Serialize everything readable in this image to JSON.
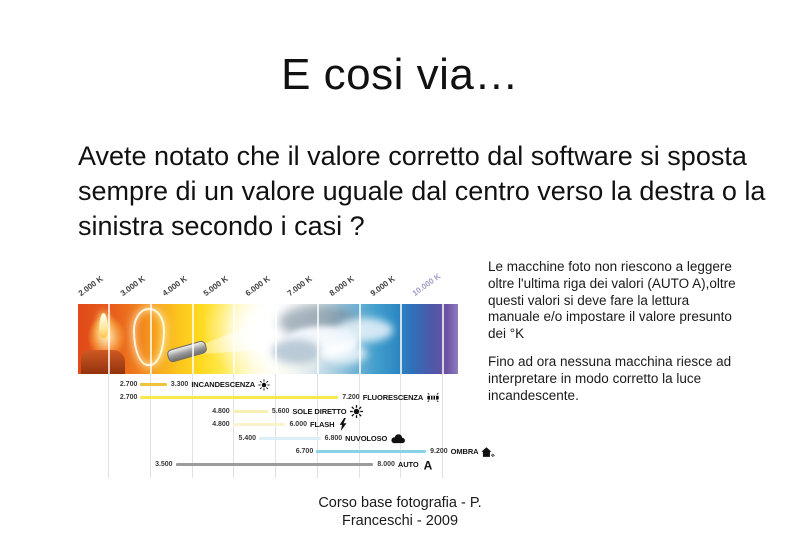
{
  "title": "E cosi via…",
  "body_text": "Avete notato che il valore corretto dal software si sposta sempre di un valore uguale dal centro verso la destra o la sinistra secondo i casi ?",
  "side_note": {
    "paragraph1": "Le macchine foto non riescono a leggere oltre l'ultima riga dei valori (AUTO A),oltre questi valori si deve fare la lettura manuale e/o impostare il valore presunto dei °K",
    "paragraph2": "Fino ad ora nessuna macchina riesce ad interpretare in modo corretto la luce incandescente."
  },
  "footer": {
    "line1": "Corso base fotografia - P.",
    "line2": "Franceschi - 2009"
  },
  "chart_data": {
    "type": "bar",
    "subtype": "horizontal-range",
    "unit": "K",
    "axis": {
      "min": 1280,
      "max": 10380,
      "ticks": [
        {
          "value": 2000,
          "label": "2.000 K"
        },
        {
          "value": 3000,
          "label": "3.000 K"
        },
        {
          "value": 4000,
          "label": "4.000 K"
        },
        {
          "value": 5000,
          "label": "5.000 K"
        },
        {
          "value": 6000,
          "label": "6.000 K"
        },
        {
          "value": 7000,
          "label": "7.000 K"
        },
        {
          "value": 8000,
          "label": "8.000 K"
        },
        {
          "value": 9000,
          "label": "9.000 K"
        },
        {
          "value": 10000,
          "label": "10.000 K"
        }
      ]
    },
    "band_colors": [
      {
        "value": 1280,
        "color": "#e04a18"
      },
      {
        "value": 2100,
        "color": "#e85c1d"
      },
      {
        "value": 2700,
        "color": "#f07c1b"
      },
      {
        "value": 3200,
        "color": "#f7a81e"
      },
      {
        "value": 3700,
        "color": "#fcc51e"
      },
      {
        "value": 4200,
        "color": "#ffd91f"
      },
      {
        "value": 4700,
        "color": "#ffe749"
      },
      {
        "value": 5100,
        "color": "#fff49b"
      },
      {
        "value": 5500,
        "color": "#fffbd8"
      },
      {
        "value": 5900,
        "color": "#ffffff"
      },
      {
        "value": 6400,
        "color": "#f2f6f8"
      },
      {
        "value": 6900,
        "color": "#d9e6ee"
      },
      {
        "value": 7400,
        "color": "#accfe2"
      },
      {
        "value": 7900,
        "color": "#74b4d6"
      },
      {
        "value": 8400,
        "color": "#43a0cc"
      },
      {
        "value": 8900,
        "color": "#2e8ac4"
      },
      {
        "value": 9300,
        "color": "#2f6fb8"
      },
      {
        "value": 9700,
        "color": "#4b5aab"
      },
      {
        "value": 10100,
        "color": "#6b51a1"
      },
      {
        "value": 10380,
        "color": "#8f7cc0"
      }
    ],
    "sources": [
      {
        "name": "INCANDESCENZA",
        "start": 2700,
        "end": 3300,
        "start_label": "2.700",
        "end_label": "3.300",
        "icon": "bulb-icon",
        "line_color": "#eec23a"
      },
      {
        "name": "FLUORESCENZA",
        "start": 2700,
        "end": 7200,
        "start_label": "2.700",
        "end_label": "7.200",
        "icon": "fluorescent-tube-icon",
        "line_color": "#f6e94e"
      },
      {
        "name": "SOLE DIRETTO",
        "start": 4800,
        "end": 5600,
        "start_label": "4.800",
        "end_label": "5.600",
        "icon": "sun-icon",
        "line_color": "#f7efb4"
      },
      {
        "name": "FLASH",
        "start": 4800,
        "end": 6000,
        "start_label": "4.800",
        "end_label": "6.000",
        "icon": "flash-icon",
        "line_color": "#f9f3cc"
      },
      {
        "name": "NUVOLOSO",
        "start": 5400,
        "end": 6800,
        "start_label": "5.400",
        "end_label": "6.800",
        "icon": "cloud-icon",
        "line_color": "#dceef6"
      },
      {
        "name": "OMBRA",
        "start": 6700,
        "end": 9200,
        "start_label": "6.700",
        "end_label": "9.200",
        "icon": "house-icon",
        "line_color": "#86d2ea"
      },
      {
        "name": "AUTO",
        "start": 3500,
        "end": 8000,
        "start_label": "3.500",
        "end_label": "8.000",
        "icon": "auto-a-icon",
        "line_color": "#9c9c9c"
      }
    ]
  }
}
